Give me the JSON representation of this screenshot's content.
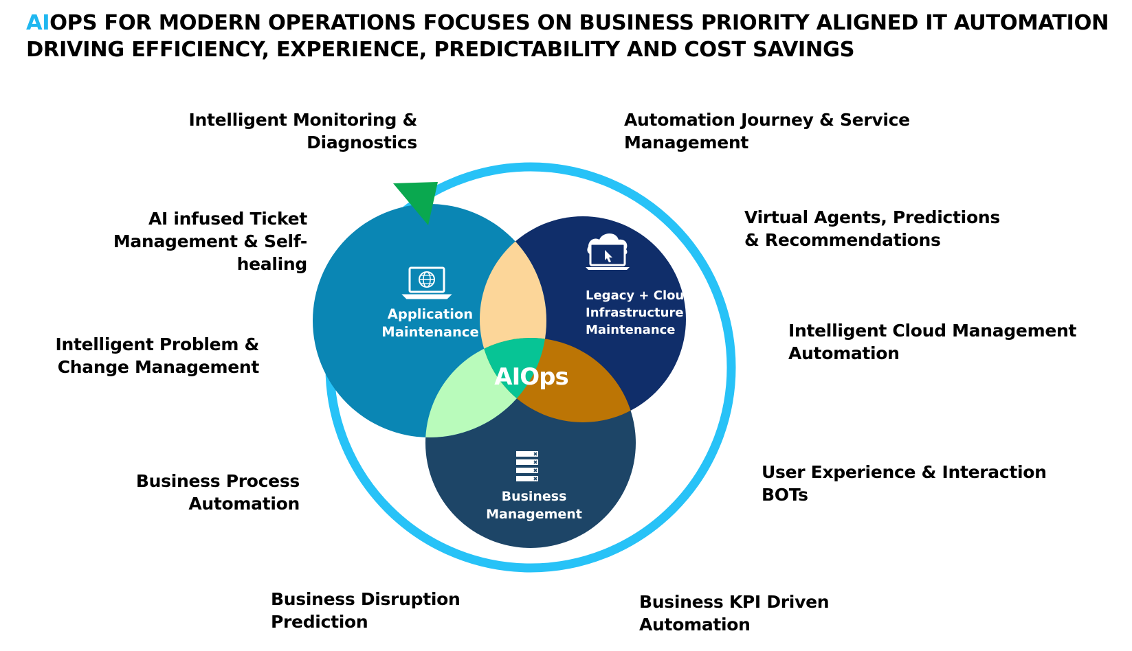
{
  "title": {
    "accent": "AI",
    "line1_rest": "OPS FOR MODERN OPERATIONS FOCUSES ON BUSINESS PRIORITY ALIGNED IT AUTOMATION",
    "line2": "DRIVING EFFICIENCY, EXPERIENCE, PREDICTABILITY AND COST SAVINGS"
  },
  "left_labels": [
    {
      "lines": [
        "Intelligent Monitoring &",
        "Diagnostics"
      ]
    },
    {
      "lines": [
        "AI infused Ticket",
        "Management & Self-",
        "healing"
      ]
    },
    {
      "lines": [
        "Intelligent Problem &",
        "Change Management"
      ]
    },
    {
      "lines": [
        "Business Process",
        "Automation"
      ]
    },
    {
      "lines": [
        "Business Disruption",
        "Prediction"
      ]
    }
  ],
  "right_labels": [
    {
      "lines": [
        "Automation Journey & Service",
        "Management"
      ]
    },
    {
      "lines": [
        "Virtual Agents, Predictions",
        "& Recommendations"
      ]
    },
    {
      "lines": [
        "Intelligent Cloud Management",
        "Automation"
      ]
    },
    {
      "lines": [
        "User Experience & Interaction",
        "BOTs"
      ]
    },
    {
      "lines": [
        "Business KPI Driven",
        "Automation"
      ]
    }
  ],
  "venn": {
    "center_label": "AIOps",
    "circles": [
      {
        "lines": [
          "Application",
          "Maintenance"
        ],
        "icon": "laptop-globe-icon"
      },
      {
        "lines": [
          "Legacy + Cloud",
          "Infrastructure",
          "Maintenance"
        ],
        "icon": "cloud-laptop-icon"
      },
      {
        "lines": [
          "Business",
          "Management"
        ],
        "icon": "server-list-icon"
      }
    ],
    "colors": {
      "ring": "#27c2f7",
      "arrow": "#0aa84f",
      "application": "#0a86b4",
      "infrastructure": "#102e6a",
      "business": "#1d4567",
      "overlap_app_infra": "#fcd699",
      "overlap_app_business": "#b9fbbb",
      "overlap_infra_business": "#bc7505",
      "center": "#07c495"
    }
  }
}
